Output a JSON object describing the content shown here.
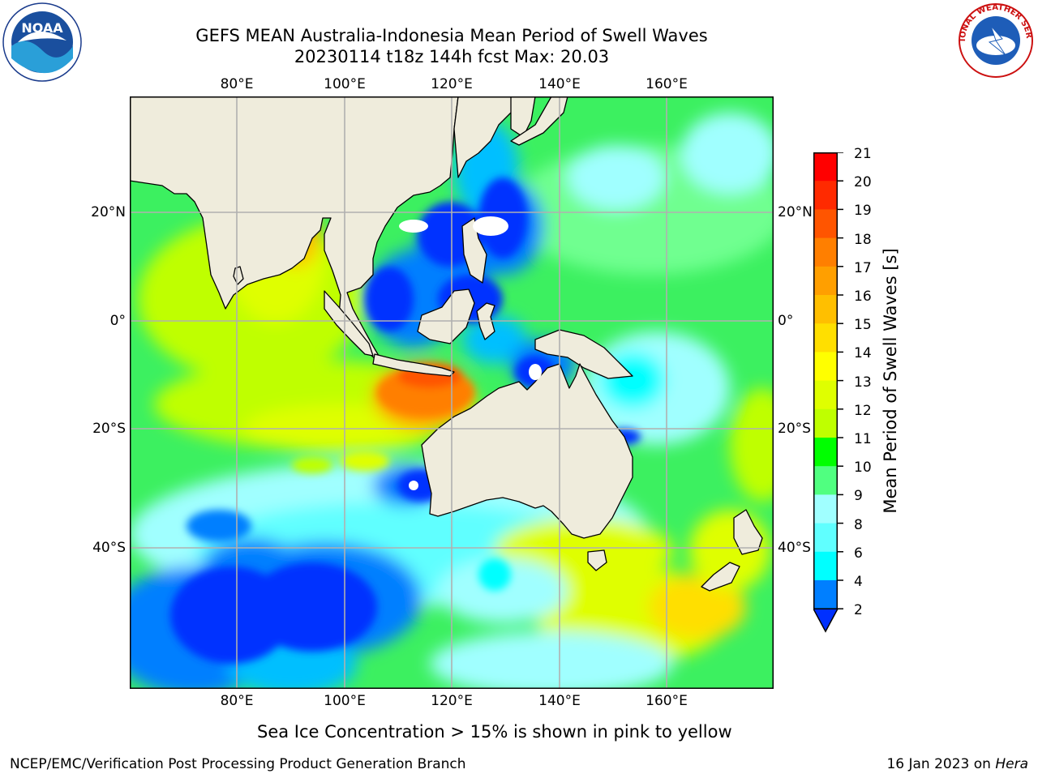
{
  "title": {
    "line1": "GEFS MEAN Australia-Indonesia Mean Period of Swell Waves",
    "line2": "20230114 t18z 144h fcst   Max: 20.03"
  },
  "axes": {
    "lon_labels": [
      "80°E",
      "100°E",
      "120°E",
      "140°E",
      "160°E"
    ],
    "lat_labels_left": [
      "20°N",
      "0°",
      "20°S",
      "40°S"
    ],
    "lat_labels_right": [
      "20°N",
      "0°",
      "20°S",
      "40°S"
    ],
    "lon_range": [
      60,
      180
    ],
    "lat_range": [
      40,
      -60
    ],
    "grid": true
  },
  "colorbar": {
    "title": "Mean Period of Swell Waves [s]",
    "ticks": [
      "21",
      "20",
      "19",
      "18",
      "17",
      "16",
      "15",
      "14",
      "13",
      "12",
      "11",
      "10",
      "9",
      "8",
      "6",
      "4",
      "2"
    ],
    "colors": [
      "#ff0000",
      "#ff2a00",
      "#ff5500",
      "#ff7f00",
      "#ff9f00",
      "#ffbf00",
      "#ffdf00",
      "#ffff00",
      "#dfff00",
      "#bfff00",
      "#7fff00",
      "#00ff00",
      "#50ff80",
      "#a0ffff",
      "#60ffff",
      "#00ffff",
      "#00bfff",
      "#007fff",
      "#0030ff"
    ]
  },
  "footer": {
    "note": "Sea Ice Concentration > 15% is shown in pink to yellow",
    "credit_left": "NCEP/EMC/Verification Post Processing Product Generation Branch",
    "credit_right_date": "16 Jan 2023 on ",
    "credit_right_host": "Hera"
  },
  "logos": {
    "left": "noaa-logo",
    "right": "nws-logo",
    "nws_text": "NATIONAL WEATHER SERVICE"
  }
}
